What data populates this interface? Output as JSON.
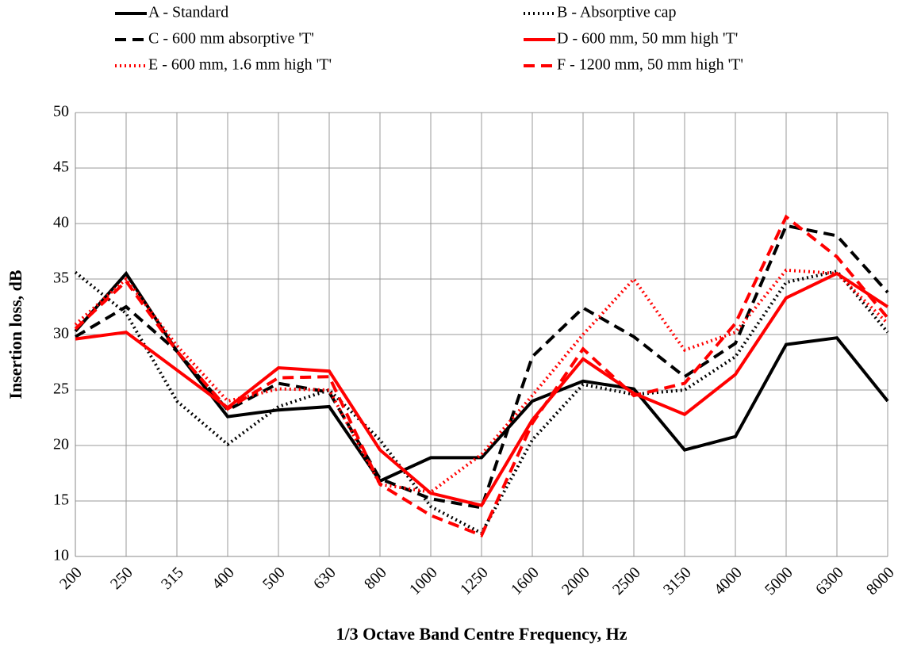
{
  "chart_data": {
    "type": "line",
    "x_label": "1/3 Octave Band Centre Frequency, Hz",
    "y_label": "Insertion loss, dB",
    "categories": [
      "200",
      "250",
      "315",
      "400",
      "500",
      "630",
      "800",
      "1000",
      "1250",
      "1600",
      "2000",
      "2500",
      "3150",
      "4000",
      "5000",
      "6300",
      "8000"
    ],
    "ylim": [
      10,
      50
    ],
    "yticks": [
      10,
      15,
      20,
      25,
      30,
      35,
      40,
      45,
      50
    ],
    "grid": true,
    "legend": "top",
    "series": [
      {
        "name": "A - Standard",
        "color": "#000000",
        "style": "solid",
        "values": [
          30.3,
          35.5,
          28.5,
          22.6,
          23.2,
          23.5,
          16.8,
          18.9,
          18.9,
          24.0,
          25.8,
          25.1,
          19.6,
          20.8,
          29.1,
          29.7,
          24.0
        ]
      },
      {
        "name": "B - Absorptive cap",
        "color": "#000000",
        "style": "dotted",
        "values": [
          35.6,
          31.9,
          24.0,
          20.1,
          23.5,
          25.0,
          20.5,
          14.5,
          12.1,
          20.5,
          25.5,
          24.6,
          25.0,
          28.0,
          34.7,
          35.7,
          30.2
        ]
      },
      {
        "name": "C - 600 mm absorptive 'T'",
        "color": "#000000",
        "style": "dashed",
        "values": [
          29.8,
          32.5,
          28.5,
          23.2,
          25.6,
          24.8,
          17.0,
          15.2,
          14.4,
          28.0,
          32.4,
          29.8,
          26.2,
          29.2,
          39.8,
          38.9,
          33.8
        ]
      },
      {
        "name": "D - 600 mm, 50 mm high 'T'",
        "color": "#ff0000",
        "style": "solid",
        "values": [
          29.6,
          30.2,
          26.8,
          23.4,
          27.0,
          26.7,
          19.6,
          15.7,
          14.6,
          22.3,
          27.8,
          24.7,
          22.8,
          26.4,
          33.3,
          35.5,
          32.5
        ]
      },
      {
        "name": "E - 600 mm, 1.6 mm high 'T'",
        "color": "#ff0000",
        "style": "dotted",
        "values": [
          30.9,
          35.0,
          29.0,
          24.0,
          25.1,
          25.0,
          16.5,
          15.8,
          19.2,
          24.5,
          30.0,
          35.0,
          28.6,
          30.2,
          35.8,
          35.5,
          31.0
        ]
      },
      {
        "name": "F - 1200 mm, 50 mm high 'T'",
        "color": "#ff0000",
        "style": "dashed",
        "values": [
          30.5,
          34.8,
          28.5,
          23.3,
          26.1,
          26.2,
          16.5,
          13.7,
          11.9,
          22.0,
          28.7,
          24.5,
          25.6,
          31.0,
          40.6,
          37.0,
          31.5
        ]
      }
    ]
  }
}
